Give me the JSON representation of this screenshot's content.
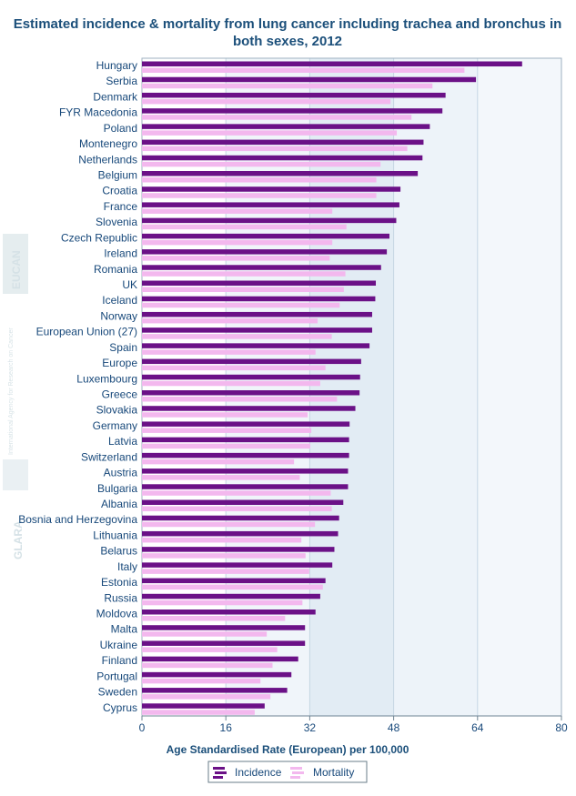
{
  "chart_data": {
    "type": "bar",
    "orientation": "horizontal",
    "title_lines": [
      "Estimated incidence & mortality from lung cancer including trachea and bronchus in",
      "both sexes, 2012"
    ],
    "xlabel": "Age Standardised Rate (European) per 100,000",
    "xlim": [
      0,
      80
    ],
    "xticks": [
      0,
      16,
      32,
      48,
      64,
      80
    ],
    "categories": [
      "Hungary",
      "Serbia",
      "Denmark",
      "FYR Macedonia",
      "Poland",
      "Montenegro",
      "Netherlands",
      "Belgium",
      "Croatia",
      "France",
      "Slovenia",
      "Czech Republic",
      "Ireland",
      "Romania",
      "UK",
      "Iceland",
      "Norway",
      "European Union (27)",
      "Spain",
      "Europe",
      "Luxembourg",
      "Greece",
      "Slovakia",
      "Germany",
      "Latvia",
      "Switzerland",
      "Austria",
      "Bulgaria",
      "Albania",
      "Bosnia and Herzegovina",
      "Lithuania",
      "Belarus",
      "Italy",
      "Estonia",
      "Russia",
      "Moldova",
      "Malta",
      "Ukraine",
      "Finland",
      "Portugal",
      "Sweden",
      "Cyprus"
    ],
    "series": [
      {
        "name": "Incidence",
        "color": "#6b1187",
        "values": [
          72.5,
          63.7,
          57.9,
          57.3,
          54.9,
          53.7,
          53.5,
          52.6,
          49.3,
          49.1,
          48.5,
          47.2,
          46.7,
          45.6,
          44.6,
          44.5,
          43.9,
          43.9,
          43.4,
          41.8,
          41.6,
          41.5,
          40.7,
          39.6,
          39.5,
          39.5,
          39.3,
          39.3,
          38.4,
          37.6,
          37.4,
          36.7,
          36.3,
          35.0,
          34.0,
          33.1,
          31.1,
          31.1,
          29.8,
          28.5,
          27.7,
          23.4
        ]
      },
      {
        "name": "Mortality",
        "color": "#f3b8ee",
        "values": [
          61.5,
          55.4,
          47.4,
          51.4,
          48.6,
          50.6,
          45.5,
          44.7,
          44.7,
          36.3,
          39.0,
          36.3,
          35.8,
          38.8,
          38.5,
          37.7,
          33.5,
          36.2,
          33.1,
          35.0,
          34.0,
          37.2,
          31.6,
          32.3,
          32.1,
          29.0,
          30.1,
          36.0,
          36.2,
          33.0,
          30.4,
          31.2,
          31.9,
          34.5,
          30.6,
          27.3,
          23.8,
          25.8,
          24.9,
          22.6,
          24.5,
          21.5
        ]
      }
    ]
  },
  "watermarks": [
    "EUCAN",
    "International Agency for Research on Cancer",
    "GLARA"
  ]
}
